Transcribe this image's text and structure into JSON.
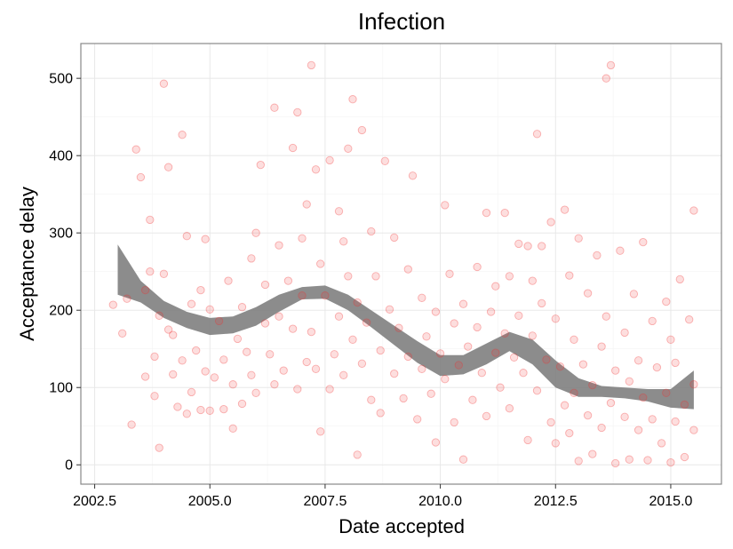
{
  "chart_data": {
    "type": "scatter",
    "title": "Infection",
    "xlabel": "Date accepted",
    "ylabel": "Acceptance delay",
    "xlim": [
      2002.2,
      2016.1
    ],
    "ylim": [
      -25,
      545
    ],
    "x_ticks": [
      2002.5,
      2005.0,
      2007.5,
      2010.0,
      2012.5,
      2015.0
    ],
    "x_tick_labels": [
      "2002.5",
      "2005.0",
      "2007.5",
      "2010.0",
      "2012.5",
      "2015.0"
    ],
    "y_ticks": [
      0,
      100,
      200,
      300,
      400,
      500
    ],
    "y_tick_labels": [
      "0",
      "100",
      "200",
      "300",
      "400",
      "500"
    ],
    "grid": true,
    "point_color": "#f03030",
    "smooth_color": "#7f7f7f",
    "smooth": {
      "x": [
        2003.0,
        2003.5,
        2004.0,
        2004.5,
        2005.0,
        2005.5,
        2006.0,
        2006.5,
        2007.0,
        2007.5,
        2008.0,
        2008.5,
        2009.0,
        2009.5,
        2010.0,
        2010.5,
        2011.0,
        2011.5,
        2012.0,
        2012.5,
        2013.0,
        2013.5,
        2014.0,
        2014.5,
        2015.0,
        2015.5
      ],
      "upper": [
        285,
        238,
        212,
        198,
        190,
        192,
        204,
        220,
        230,
        232,
        220,
        200,
        180,
        160,
        142,
        142,
        157,
        172,
        162,
        135,
        112,
        102,
        100,
        98,
        98,
        122
      ],
      "lower": [
        220,
        210,
        190,
        177,
        168,
        170,
        180,
        198,
        214,
        215,
        200,
        178,
        155,
        132,
        115,
        117,
        130,
        147,
        130,
        100,
        88,
        88,
        86,
        82,
        74,
        72
      ]
    },
    "points": [
      [
        2002.9,
        207
      ],
      [
        2003.1,
        170
      ],
      [
        2003.2,
        215
      ],
      [
        2003.3,
        52
      ],
      [
        2003.4,
        408
      ],
      [
        2003.5,
        372
      ],
      [
        2003.6,
        226
      ],
      [
        2003.6,
        114
      ],
      [
        2003.7,
        250
      ],
      [
        2003.7,
        317
      ],
      [
        2003.8,
        140
      ],
      [
        2003.8,
        89
      ],
      [
        2003.9,
        22
      ],
      [
        2003.9,
        193
      ],
      [
        2004.0,
        493
      ],
      [
        2004.0,
        247
      ],
      [
        2004.1,
        385
      ],
      [
        2004.1,
        175
      ],
      [
        2004.2,
        117
      ],
      [
        2004.2,
        168
      ],
      [
        2004.3,
        75
      ],
      [
        2004.4,
        427
      ],
      [
        2004.4,
        135
      ],
      [
        2004.5,
        296
      ],
      [
        2004.5,
        66
      ],
      [
        2004.6,
        208
      ],
      [
        2004.6,
        94
      ],
      [
        2004.7,
        148
      ],
      [
        2004.8,
        71
      ],
      [
        2004.8,
        226
      ],
      [
        2004.9,
        292
      ],
      [
        2004.9,
        121
      ],
      [
        2005.0,
        201
      ],
      [
        2005.0,
        70
      ],
      [
        2005.1,
        113
      ],
      [
        2005.2,
        186
      ],
      [
        2005.3,
        72
      ],
      [
        2005.3,
        136
      ],
      [
        2005.4,
        238
      ],
      [
        2005.5,
        47
      ],
      [
        2005.5,
        104
      ],
      [
        2005.6,
        163
      ],
      [
        2005.7,
        79
      ],
      [
        2005.7,
        204
      ],
      [
        2005.8,
        146
      ],
      [
        2005.9,
        267
      ],
      [
        2005.9,
        116
      ],
      [
        2006.0,
        300
      ],
      [
        2006.0,
        93
      ],
      [
        2006.1,
        388
      ],
      [
        2006.2,
        183
      ],
      [
        2006.2,
        233
      ],
      [
        2006.3,
        143
      ],
      [
        2006.4,
        462
      ],
      [
        2006.4,
        104
      ],
      [
        2006.5,
        192
      ],
      [
        2006.5,
        284
      ],
      [
        2006.6,
        122
      ],
      [
        2006.7,
        238
      ],
      [
        2006.8,
        410
      ],
      [
        2006.8,
        176
      ],
      [
        2006.9,
        98
      ],
      [
        2006.9,
        456
      ],
      [
        2007.0,
        219
      ],
      [
        2007.0,
        293
      ],
      [
        2007.1,
        133
      ],
      [
        2007.1,
        337
      ],
      [
        2007.2,
        172
      ],
      [
        2007.2,
        517
      ],
      [
        2007.3,
        124
      ],
      [
        2007.3,
        382
      ],
      [
        2007.4,
        260
      ],
      [
        2007.4,
        43
      ],
      [
        2007.5,
        219
      ],
      [
        2007.6,
        98
      ],
      [
        2007.6,
        394
      ],
      [
        2007.7,
        143
      ],
      [
        2007.8,
        328
      ],
      [
        2007.8,
        192
      ],
      [
        2007.9,
        289
      ],
      [
        2007.9,
        116
      ],
      [
        2008.0,
        244
      ],
      [
        2008.0,
        409
      ],
      [
        2008.1,
        162
      ],
      [
        2008.1,
        473
      ],
      [
        2008.2,
        210
      ],
      [
        2008.2,
        13
      ],
      [
        2008.3,
        131
      ],
      [
        2008.3,
        433
      ],
      [
        2008.4,
        184
      ],
      [
        2008.5,
        302
      ],
      [
        2008.5,
        84
      ],
      [
        2008.6,
        244
      ],
      [
        2008.7,
        148
      ],
      [
        2008.7,
        67
      ],
      [
        2008.8,
        393
      ],
      [
        2008.9,
        201
      ],
      [
        2009.0,
        118
      ],
      [
        2009.0,
        294
      ],
      [
        2009.1,
        177
      ],
      [
        2009.2,
        86
      ],
      [
        2009.3,
        253
      ],
      [
        2009.3,
        140
      ],
      [
        2009.4,
        374
      ],
      [
        2009.5,
        59
      ],
      [
        2009.6,
        216
      ],
      [
        2009.6,
        124
      ],
      [
        2009.7,
        166
      ],
      [
        2009.8,
        92
      ],
      [
        2009.9,
        198
      ],
      [
        2009.9,
        29
      ],
      [
        2010.0,
        144
      ],
      [
        2010.1,
        336
      ],
      [
        2010.1,
        111
      ],
      [
        2010.2,
        247
      ],
      [
        2010.3,
        55
      ],
      [
        2010.3,
        183
      ],
      [
        2010.4,
        129
      ],
      [
        2010.5,
        7
      ],
      [
        2010.5,
        208
      ],
      [
        2010.6,
        153
      ],
      [
        2010.7,
        84
      ],
      [
        2010.8,
        178
      ],
      [
        2010.8,
        256
      ],
      [
        2010.9,
        119
      ],
      [
        2011.0,
        63
      ],
      [
        2011.0,
        326
      ],
      [
        2011.1,
        198
      ],
      [
        2011.2,
        145
      ],
      [
        2011.2,
        231
      ],
      [
        2011.3,
        100
      ],
      [
        2011.4,
        326
      ],
      [
        2011.4,
        170
      ],
      [
        2011.5,
        244
      ],
      [
        2011.5,
        73
      ],
      [
        2011.6,
        139
      ],
      [
        2011.7,
        286
      ],
      [
        2011.7,
        193
      ],
      [
        2011.8,
        119
      ],
      [
        2011.9,
        283
      ],
      [
        2011.9,
        32
      ],
      [
        2012.0,
        238
      ],
      [
        2012.0,
        167
      ],
      [
        2012.1,
        428
      ],
      [
        2012.1,
        96
      ],
      [
        2012.2,
        283
      ],
      [
        2012.2,
        209
      ],
      [
        2012.3,
        136
      ],
      [
        2012.4,
        314
      ],
      [
        2012.4,
        55
      ],
      [
        2012.5,
        189
      ],
      [
        2012.5,
        28
      ],
      [
        2012.6,
        127
      ],
      [
        2012.7,
        330
      ],
      [
        2012.7,
        77
      ],
      [
        2012.8,
        245
      ],
      [
        2012.8,
        41
      ],
      [
        2012.9,
        162
      ],
      [
        2012.9,
        93
      ],
      [
        2013.0,
        293
      ],
      [
        2013.0,
        5
      ],
      [
        2013.1,
        130
      ],
      [
        2013.2,
        64
      ],
      [
        2013.2,
        222
      ],
      [
        2013.3,
        103
      ],
      [
        2013.3,
        14
      ],
      [
        2013.4,
        271
      ],
      [
        2013.5,
        153
      ],
      [
        2013.5,
        48
      ],
      [
        2013.6,
        500
      ],
      [
        2013.6,
        192
      ],
      [
        2013.7,
        80
      ],
      [
        2013.7,
        517
      ],
      [
        2013.8,
        122
      ],
      [
        2013.8,
        2
      ],
      [
        2013.9,
        277
      ],
      [
        2014.0,
        62
      ],
      [
        2014.0,
        171
      ],
      [
        2014.1,
        108
      ],
      [
        2014.1,
        7
      ],
      [
        2014.2,
        221
      ],
      [
        2014.3,
        45
      ],
      [
        2014.3,
        135
      ],
      [
        2014.4,
        288
      ],
      [
        2014.4,
        87
      ],
      [
        2014.5,
        6
      ],
      [
        2014.6,
        186
      ],
      [
        2014.6,
        59
      ],
      [
        2014.7,
        126
      ],
      [
        2014.8,
        28
      ],
      [
        2014.9,
        211
      ],
      [
        2014.9,
        93
      ],
      [
        2015.0,
        162
      ],
      [
        2015.0,
        3
      ],
      [
        2015.1,
        56
      ],
      [
        2015.1,
        132
      ],
      [
        2015.2,
        240
      ],
      [
        2015.3,
        78
      ],
      [
        2015.3,
        10
      ],
      [
        2015.4,
        188
      ],
      [
        2015.5,
        104
      ],
      [
        2015.5,
        45
      ],
      [
        2015.5,
        329
      ]
    ]
  }
}
